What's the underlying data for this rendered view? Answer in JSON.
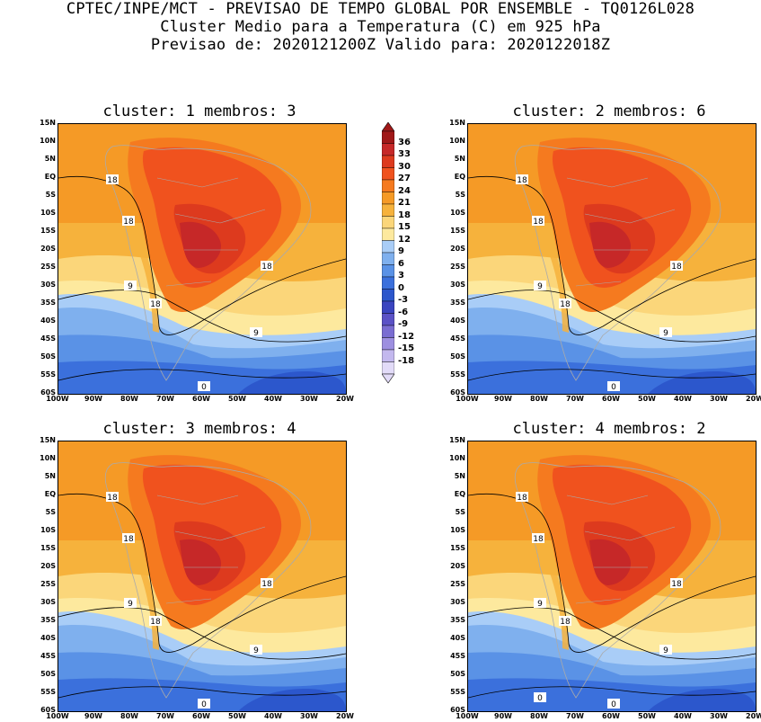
{
  "header": {
    "line1": "CPTEC/INPE/MCT - PREVISAO DE TEMPO GLOBAL POR ENSEMBLE - TQ0126L028",
    "line2": "Cluster Medio para a Temperatura (C) em 925 hPa",
    "line3": "Previsao de: 2020121200Z   Valido para: 2020122018Z"
  },
  "panels": [
    {
      "title": "cluster: 1   membros: 3",
      "labels": [
        "18",
        "18",
        "18",
        "18",
        "9",
        "9",
        "0"
      ]
    },
    {
      "title": "cluster: 2   membros: 6",
      "labels": [
        "18",
        "18",
        "18",
        "18",
        "9",
        "9",
        "0"
      ]
    },
    {
      "title": "cluster: 3   membros: 4",
      "labels": [
        "18",
        "18",
        "18",
        "18",
        "9",
        "9",
        "0"
      ]
    },
    {
      "title": "cluster: 4   membros: 2",
      "labels": [
        "18",
        "18",
        "18",
        "18",
        "9",
        "9",
        "0",
        "0"
      ]
    }
  ],
  "lat_labels": [
    "15N",
    "10N",
    "5N",
    "EQ",
    "5S",
    "10S",
    "15S",
    "20S",
    "25S",
    "30S",
    "35S",
    "40S",
    "45S",
    "50S",
    "55S",
    "60S"
  ],
  "lon_labels": [
    "100W",
    "90W",
    "80W",
    "70W",
    "60W",
    "50W",
    "40W",
    "30W",
    "20W"
  ],
  "colorbar": {
    "levels": [
      "36",
      "33",
      "30",
      "27",
      "24",
      "21",
      "18",
      "15",
      "12",
      "9",
      "6",
      "3",
      "0",
      "-3",
      "-6",
      "-9",
      "-12",
      "-15",
      "-18"
    ],
    "colors": [
      "#a01818",
      "#c62828",
      "#dd3a1e",
      "#f0521e",
      "#f57a1f",
      "#f59a26",
      "#f6b23c",
      "#fbd67a",
      "#fde99e",
      "#a9cdf7",
      "#7fb0ee",
      "#5a92e6",
      "#3b70dc",
      "#2c57cc",
      "#3a45c0",
      "#5b52c6",
      "#7a6dd2",
      "#9d8fe0",
      "#c3b8ee",
      "#e2dbf8"
    ]
  },
  "map_colors": {
    "land_outline": "#aaaaaa",
    "contour": "#000000"
  }
}
